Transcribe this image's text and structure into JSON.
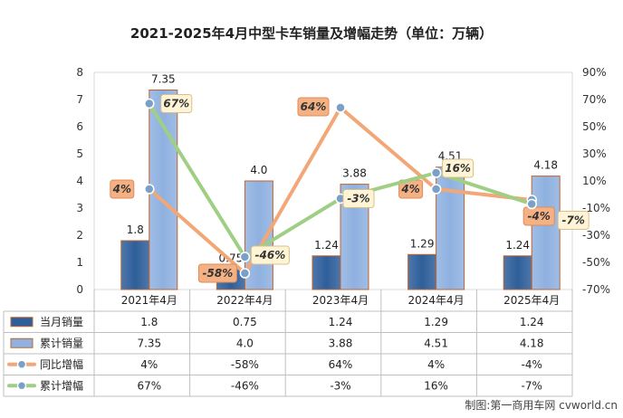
{
  "chart_data": {
    "type": "bar",
    "title": "2021-2025年4月中型卡车销量及增幅走势（单位：万辆）",
    "categories": [
      "2021年4月",
      "2022年4月",
      "2023年4月",
      "2024年4月",
      "2025年4月"
    ],
    "left_axis": {
      "ylim": [
        0,
        8
      ],
      "ticks": [
        "0",
        "1",
        "2",
        "3",
        "4",
        "5",
        "6",
        "7",
        "8"
      ]
    },
    "right_axis": {
      "ylim": [
        -70,
        90
      ],
      "ticks": [
        "-70%",
        "-50%",
        "-30%",
        "-10%",
        "10%",
        "30%",
        "50%",
        "70%",
        "90%"
      ]
    },
    "series": [
      {
        "name": "当月销量",
        "kind": "bar",
        "axis": "left",
        "color": "#2e5f9a",
        "values": [
          1.8,
          0.75,
          1.24,
          1.29,
          1.24
        ],
        "labels": [
          "1.8",
          "0.75",
          "1.24",
          "1.29",
          "1.24"
        ]
      },
      {
        "name": "累计销量",
        "kind": "bar",
        "axis": "left",
        "color": "#8fb1e0",
        "values": [
          7.35,
          4.0,
          3.88,
          4.51,
          4.18
        ],
        "labels": [
          "7.35",
          "4.0",
          "3.88",
          "4.51",
          "4.18"
        ]
      },
      {
        "name": "同比增幅",
        "kind": "line",
        "axis": "right",
        "color": "#f2a777",
        "values": [
          4,
          -58,
          64,
          4,
          -4
        ],
        "labels": [
          "4%",
          "-58%",
          "64%",
          "4%",
          "-4%"
        ]
      },
      {
        "name": "累计增幅",
        "kind": "line",
        "axis": "right",
        "color": "#9fcf84",
        "values": [
          67,
          -46,
          -3,
          16,
          -7
        ],
        "labels": [
          "67%",
          "-46%",
          "-3%",
          "16%",
          "-7%"
        ]
      }
    ],
    "legend": "bottom data table",
    "source": "制图:第一商用车网 cvworld.cn"
  }
}
